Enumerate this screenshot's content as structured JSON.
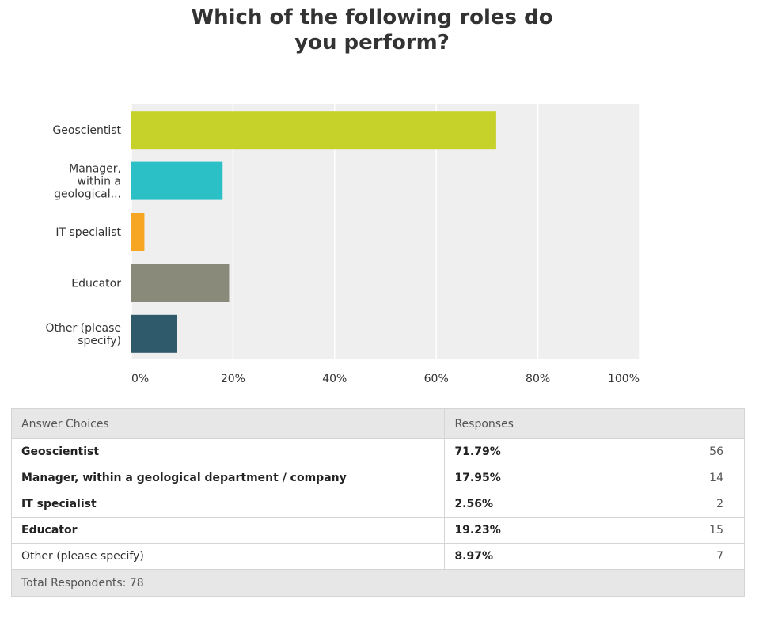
{
  "chart_data": {
    "type": "bar",
    "orientation": "horizontal",
    "title": "Which of the following roles do you perform?",
    "categories": [
      "Geoscientist",
      "Manager, within a geological...",
      "IT specialist",
      "Educator",
      "Other (please specify)"
    ],
    "values": [
      71.79,
      17.95,
      2.56,
      19.23,
      8.97
    ],
    "colors": [
      "#c6d12a",
      "#2bbfc6",
      "#f6a623",
      "#8a8a7b",
      "#2f5a6b"
    ],
    "xlim": [
      0,
      100
    ],
    "xticks": [
      "0%",
      "20%",
      "40%",
      "60%",
      "80%",
      "100%"
    ],
    "grid": true
  },
  "table": {
    "headers": {
      "choice": "Answer Choices",
      "responses": "Responses"
    },
    "rows": [
      {
        "choice": "Geoscientist",
        "percent": "71.79%",
        "count": "56",
        "bold": true
      },
      {
        "choice": "Manager, within a geological department / company",
        "percent": "17.95%",
        "count": "14",
        "bold": true
      },
      {
        "choice": "IT specialist",
        "percent": "2.56%",
        "count": "2",
        "bold": true
      },
      {
        "choice": "Educator",
        "percent": "19.23%",
        "count": "15",
        "bold": true
      },
      {
        "choice": "Other (please specify)",
        "percent": "8.97%",
        "count": "7",
        "bold": false
      }
    ],
    "footer": "Total Respondents: 78"
  }
}
